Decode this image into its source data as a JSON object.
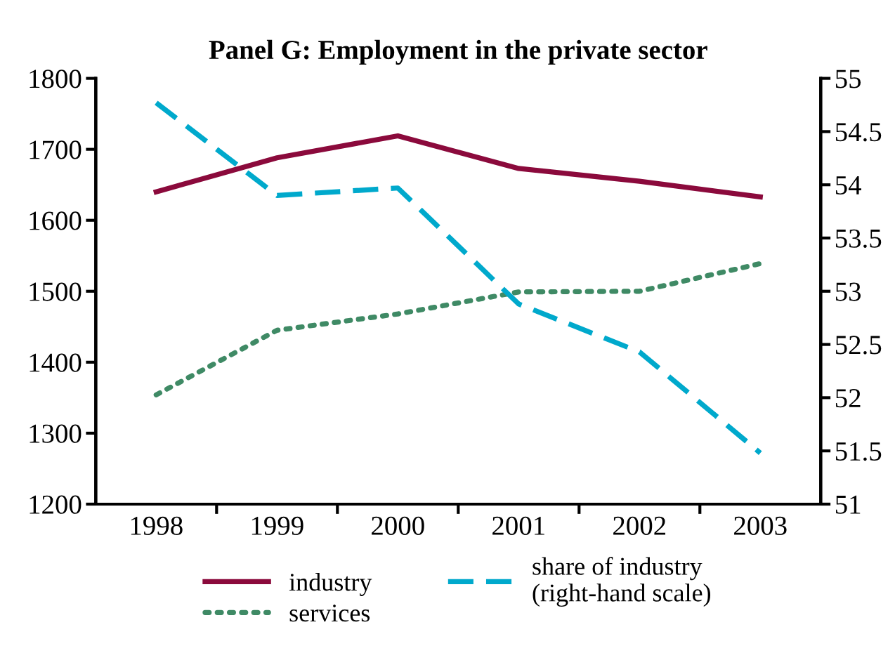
{
  "chart_data": {
    "type": "line",
    "title": "Panel G: Employment in the private sector",
    "categories": [
      "1998",
      "1999",
      "2000",
      "2001",
      "2002",
      "2003"
    ],
    "series": [
      {
        "name": "industry",
        "color": "#8b0a3c",
        "values": [
          1640,
          1688,
          1719,
          1673,
          1655,
          1633
        ],
        "line_style": "solid"
      },
      {
        "name": "share of industry\n(right-hand scale)",
        "color": "#00a9cc",
        "values": [
          54.77,
          53.9,
          53.97,
          52.88,
          52.43,
          51.48
        ],
        "line_style": "dashed",
        "axis": "y2"
      },
      {
        "name": "services",
        "color": "#3f8a65",
        "values": [
          1354,
          1445,
          1468,
          1499,
          1500,
          1539
        ],
        "line_style": "dotted"
      }
    ],
    "ylim": [
      1200,
      1800
    ],
    "yticks": [
      1200,
      1300,
      1400,
      1500,
      1600,
      1700,
      1800
    ],
    "y2lim": [
      51,
      55
    ],
    "y2ticks": [
      51,
      51.5,
      52,
      52.5,
      53,
      53.5,
      54,
      54.5,
      55
    ],
    "grid": false,
    "legend": "bottom",
    "marker": "none"
  }
}
